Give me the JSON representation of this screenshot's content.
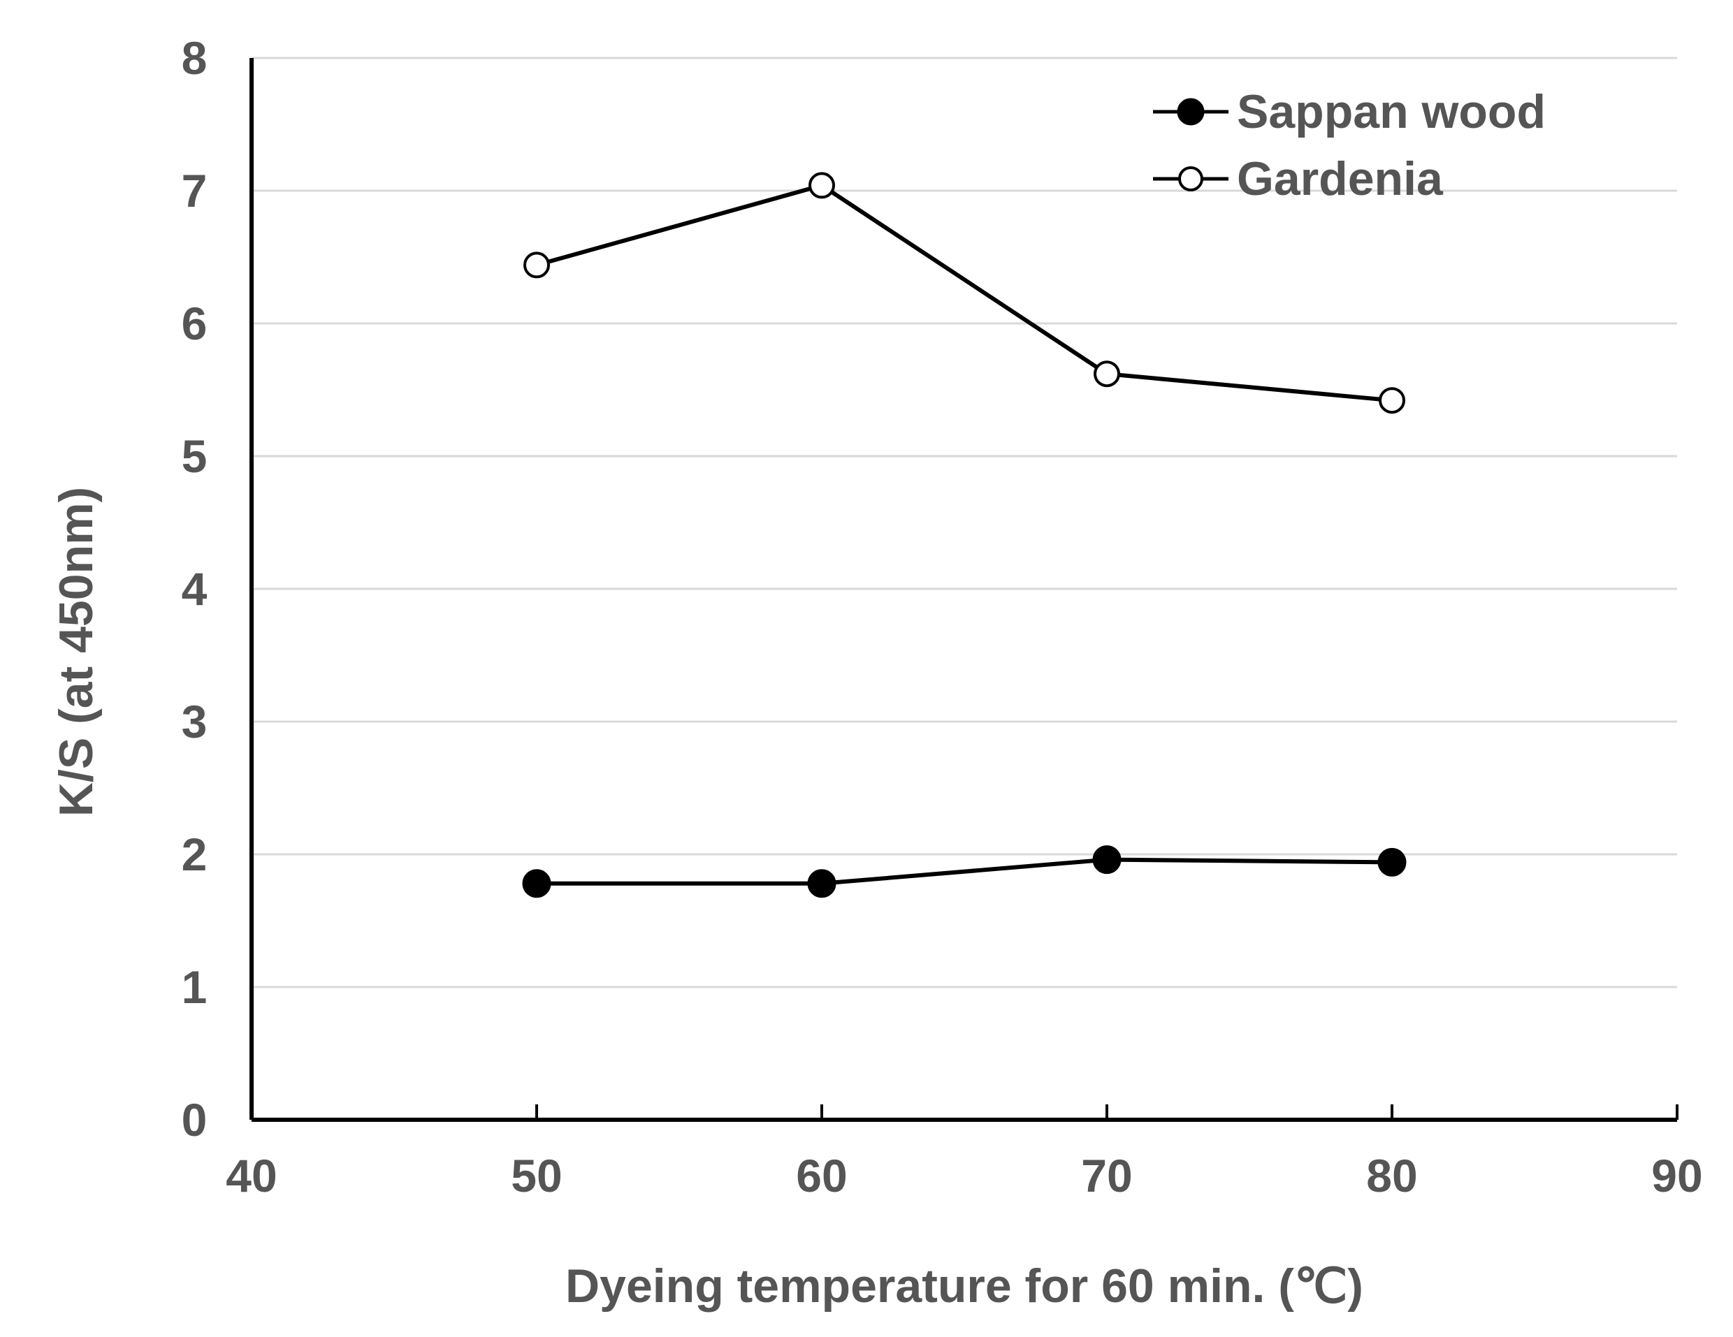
{
  "chart_data": {
    "type": "line",
    "xlabel": "Dyeing temperature for 60 min. (℃)",
    "ylabel": "K/S (at 450nm)",
    "xlim": [
      40,
      90
    ],
    "ylim": [
      0,
      8
    ],
    "xticks": [
      40,
      50,
      60,
      70,
      80,
      90
    ],
    "yticks": [
      0,
      1,
      2,
      3,
      4,
      5,
      6,
      7,
      8
    ],
    "x": [
      50,
      60,
      70,
      80
    ],
    "grid": true,
    "legend_position": "top-right",
    "series": [
      {
        "name": "Sappan wood",
        "marker": "filled-circle",
        "values": [
          1.78,
          1.78,
          1.96,
          1.94
        ]
      },
      {
        "name": "Gardenia",
        "marker": "open-circle",
        "values": [
          6.44,
          7.04,
          5.62,
          5.42
        ]
      }
    ]
  }
}
